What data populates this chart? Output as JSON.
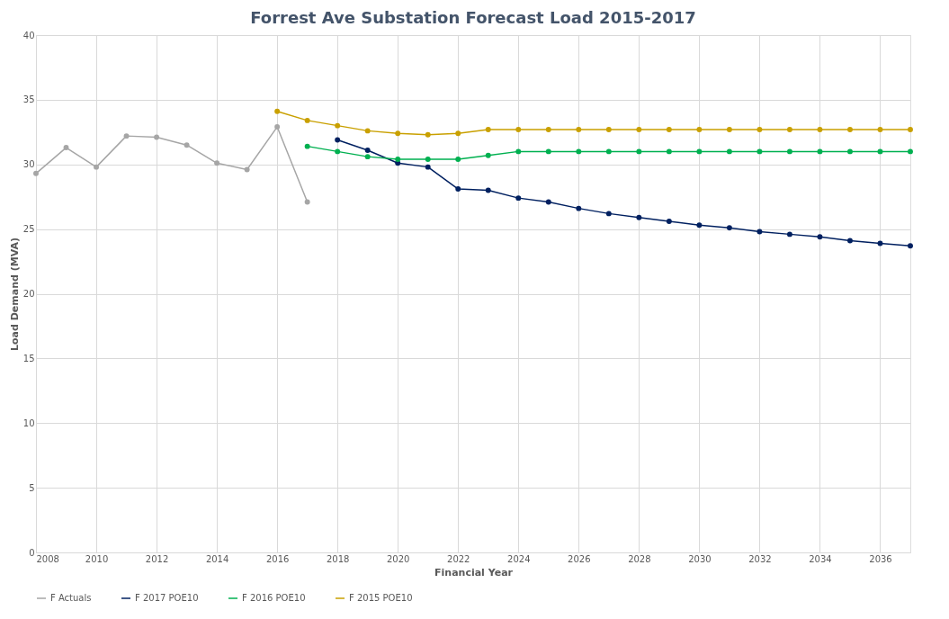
{
  "chart_data": {
    "type": "line",
    "title": "Forrest Ave Substation Forecast Load 2015-2017",
    "xlabel": "Financial Year",
    "ylabel": "Load Demand (MVA)",
    "xlim": [
      2008,
      2037
    ],
    "xticks": [
      2008,
      2010,
      2012,
      2014,
      2016,
      2018,
      2020,
      2022,
      2024,
      2026,
      2028,
      2030,
      2032,
      2034,
      2036
    ],
    "ylim": [
      0,
      40
    ],
    "yticks": [
      0,
      5,
      10,
      15,
      20,
      25,
      30,
      35,
      40
    ],
    "grid": true,
    "legend": "bottom",
    "marker": "circle",
    "line_style": "solid",
    "series": [
      {
        "name": "F Actuals",
        "color": "#a6a6a6",
        "x": [
          2008,
          2009,
          2010,
          2011,
          2012,
          2013,
          2014,
          2015,
          2016,
          2017
        ],
        "values": [
          29.3,
          31.3,
          29.8,
          32.2,
          32.1,
          31.5,
          30.1,
          29.6,
          32.9,
          27.1
        ]
      },
      {
        "name": "F 2017 POE10",
        "color": "#002060",
        "x": [
          2018,
          2019,
          2020,
          2021,
          2022,
          2023,
          2024,
          2025,
          2026,
          2027,
          2028,
          2029,
          2030,
          2031,
          2032,
          2033,
          2034,
          2035,
          2036,
          2037
        ],
        "values": [
          31.9,
          31.1,
          30.1,
          29.8,
          28.1,
          28.0,
          27.4,
          27.1,
          26.6,
          26.2,
          25.9,
          25.6,
          25.3,
          25.1,
          24.8,
          24.6,
          24.4,
          24.1,
          23.9,
          23.7
        ]
      },
      {
        "name": "F 2016 POE10",
        "color": "#00b050",
        "x": [
          2017,
          2018,
          2019,
          2020,
          2021,
          2022,
          2023,
          2024,
          2025,
          2026,
          2027,
          2028,
          2029,
          2030,
          2031,
          2032,
          2033,
          2034,
          2035,
          2036,
          2037
        ],
        "values": [
          31.4,
          31.0,
          30.6,
          30.4,
          30.4,
          30.4,
          30.7,
          31.0,
          31.0,
          31.0,
          31.0,
          31.0,
          31.0,
          31.0,
          31.0,
          31.0,
          31.0,
          31.0,
          31.0,
          31.0,
          31.0
        ]
      },
      {
        "name": "F 2015 POE10",
        "color": "#c9a000",
        "x": [
          2016,
          2017,
          2018,
          2019,
          2020,
          2021,
          2022,
          2023,
          2024,
          2025,
          2026,
          2027,
          2028,
          2029,
          2030,
          2031,
          2032,
          2033,
          2034,
          2035,
          2036,
          2037
        ],
        "values": [
          34.1,
          33.4,
          33.0,
          32.6,
          32.4,
          32.3,
          32.4,
          32.7,
          32.7,
          32.7,
          32.7,
          32.7,
          32.7,
          32.7,
          32.7,
          32.7,
          32.7,
          32.7,
          32.7,
          32.7,
          32.7,
          32.7
        ]
      }
    ]
  }
}
